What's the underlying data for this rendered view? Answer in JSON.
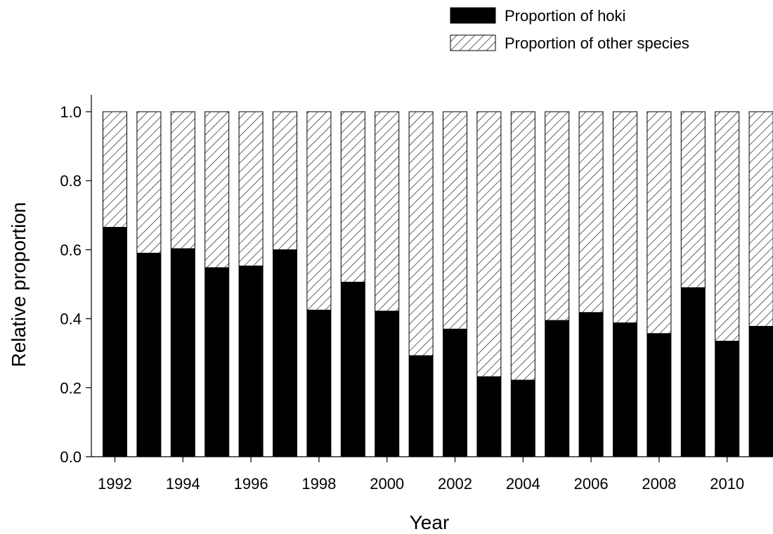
{
  "chart_data": {
    "type": "bar",
    "stacked": true,
    "title": "",
    "xlabel": "Year",
    "ylabel": "Relative proportion",
    "ylim": [
      0,
      1.0
    ],
    "yticks": [
      "0.0",
      "0.2",
      "0.4",
      "0.6",
      "0.8",
      "1.0"
    ],
    "categories": [
      1992,
      1993,
      1994,
      1995,
      1996,
      1997,
      1998,
      1999,
      2000,
      2001,
      2002,
      2003,
      2004,
      2005,
      2006,
      2007,
      2008,
      2009,
      2010,
      2011
    ],
    "xticks": [
      "1992",
      "1994",
      "1996",
      "1998",
      "2000",
      "2002",
      "2004",
      "2006",
      "2008",
      "2010"
    ],
    "series": [
      {
        "name": "Proportion of hoki",
        "pattern": "solid",
        "color": "#000000",
        "values": [
          0.665,
          0.59,
          0.603,
          0.548,
          0.553,
          0.6,
          0.425,
          0.506,
          0.422,
          0.293,
          0.37,
          0.232,
          0.222,
          0.395,
          0.418,
          0.388,
          0.357,
          0.49,
          0.335,
          0.378
        ]
      },
      {
        "name": "Proportion of other species",
        "pattern": "diagonal-hatch",
        "color": "#000000",
        "values": [
          0.335,
          0.41,
          0.397,
          0.452,
          0.447,
          0.4,
          0.575,
          0.494,
          0.578,
          0.707,
          0.63,
          0.768,
          0.778,
          0.605,
          0.582,
          0.612,
          0.643,
          0.51,
          0.665,
          0.622
        ]
      }
    ],
    "legend": "top-right",
    "grid": false
  }
}
